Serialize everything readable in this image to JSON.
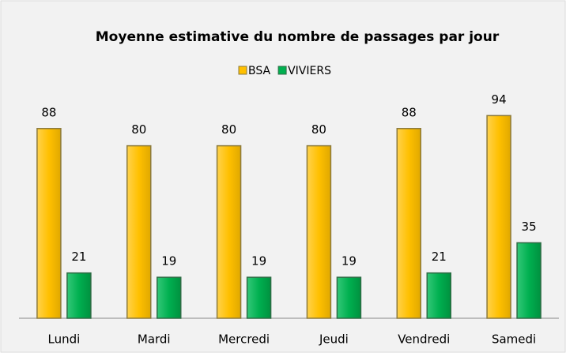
{
  "chart_data": {
    "type": "bar",
    "title": "Moyenne estimative du nombre de passages par jour",
    "categories": [
      "Lundi",
      "Mardi",
      "Mercredi",
      "Jeudi",
      "Vendredi",
      "Samedi"
    ],
    "series": [
      {
        "name": "BSA",
        "color": "#ffc000",
        "values": [
          88,
          80,
          80,
          80,
          88,
          94
        ]
      },
      {
        "name": "VIVIERS",
        "color": "#00b050",
        "values": [
          21,
          19,
          19,
          19,
          21,
          35
        ]
      }
    ],
    "ylim": [
      0,
      100
    ],
    "legend": "top"
  }
}
